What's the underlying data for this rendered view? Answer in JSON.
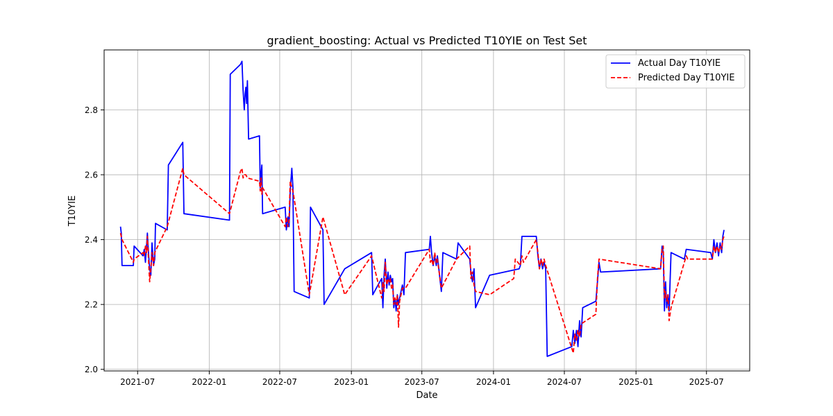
{
  "chart_data": {
    "type": "line",
    "title": "gradient_boosting: Actual vs Predicted T10YIE on Test Set",
    "xlabel": "Date",
    "ylabel": "T10YIE",
    "xlim": [
      "2021-04-06",
      "2025-10-20"
    ],
    "ylim": [
      1.995,
      2.985
    ],
    "grid": true,
    "legend_position": "top-right",
    "x_ticks": [
      "2021-07",
      "2022-01",
      "2022-07",
      "2023-01",
      "2023-07",
      "2024-01",
      "2024-07",
      "2025-01",
      "2025-07"
    ],
    "y_ticks": [
      "2.0",
      "2.2",
      "2.4",
      "2.6",
      "2.8"
    ],
    "series": [
      {
        "name": "Actual Day T10YIE",
        "color": "#0000ff",
        "style": "solid",
        "points": [
          [
            "2021-05-18",
            2.44
          ],
          [
            "2021-05-20",
            2.42
          ],
          [
            "2021-05-22",
            2.32
          ],
          [
            "2021-06-20",
            2.32
          ],
          [
            "2021-06-22",
            2.38
          ],
          [
            "2021-07-15",
            2.35
          ],
          [
            "2021-07-18",
            2.37
          ],
          [
            "2021-07-21",
            2.33
          ],
          [
            "2021-07-24",
            2.38
          ],
          [
            "2021-07-26",
            2.42
          ],
          [
            "2021-07-29",
            2.36
          ],
          [
            "2021-08-01",
            2.31
          ],
          [
            "2021-08-04",
            2.29
          ],
          [
            "2021-08-07",
            2.39
          ],
          [
            "2021-08-11",
            2.32
          ],
          [
            "2021-08-14",
            2.34
          ],
          [
            "2021-08-16",
            2.45
          ],
          [
            "2021-09-15",
            2.43
          ],
          [
            "2021-09-18",
            2.63
          ],
          [
            "2021-10-25",
            2.7
          ],
          [
            "2021-10-28",
            2.48
          ],
          [
            "2022-02-22",
            2.46
          ],
          [
            "2022-02-24",
            2.91
          ],
          [
            "2022-03-22",
            2.94
          ],
          [
            "2022-03-26",
            2.95
          ],
          [
            "2022-03-29",
            2.86
          ],
          [
            "2022-04-01",
            2.8
          ],
          [
            "2022-04-03",
            2.85
          ],
          [
            "2022-04-05",
            2.87
          ],
          [
            "2022-04-07",
            2.82
          ],
          [
            "2022-04-09",
            2.89
          ],
          [
            "2022-04-12",
            2.71
          ],
          [
            "2022-05-10",
            2.72
          ],
          [
            "2022-05-12",
            2.56
          ],
          [
            "2022-05-14",
            2.6
          ],
          [
            "2022-05-16",
            2.63
          ],
          [
            "2022-05-18",
            2.48
          ],
          [
            "2022-07-15",
            2.5
          ],
          [
            "2022-07-18",
            2.43
          ],
          [
            "2022-07-22",
            2.47
          ],
          [
            "2022-07-25",
            2.44
          ],
          [
            "2022-07-28",
            2.55
          ],
          [
            "2022-08-01",
            2.62
          ],
          [
            "2022-08-04",
            2.56
          ],
          [
            "2022-08-07",
            2.24
          ],
          [
            "2022-09-15",
            2.22
          ],
          [
            "2022-09-18",
            2.5
          ],
          [
            "2022-10-20",
            2.43
          ],
          [
            "2022-10-23",
            2.2
          ],
          [
            "2022-12-15",
            2.31
          ],
          [
            "2023-02-22",
            2.36
          ],
          [
            "2023-02-25",
            2.23
          ],
          [
            "2023-03-15",
            2.27
          ],
          [
            "2023-03-20",
            2.28
          ],
          [
            "2023-03-23",
            2.19
          ],
          [
            "2023-03-26",
            2.29
          ],
          [
            "2023-03-29",
            2.34
          ],
          [
            "2023-04-02",
            2.25
          ],
          [
            "2023-04-05",
            2.3
          ],
          [
            "2023-04-08",
            2.26
          ],
          [
            "2023-04-11",
            2.29
          ],
          [
            "2023-04-14",
            2.27
          ],
          [
            "2023-04-17",
            2.28
          ],
          [
            "2023-04-20",
            2.19
          ],
          [
            "2023-04-23",
            2.22
          ],
          [
            "2023-04-26",
            2.18
          ],
          [
            "2023-04-29",
            2.23
          ],
          [
            "2023-05-02",
            2.2
          ],
          [
            "2023-05-05",
            2.22
          ],
          [
            "2023-05-12",
            2.26
          ],
          [
            "2023-05-16",
            2.23
          ],
          [
            "2023-05-20",
            2.36
          ],
          [
            "2023-07-20",
            2.37
          ],
          [
            "2023-07-23",
            2.41
          ],
          [
            "2023-07-26",
            2.36
          ],
          [
            "2023-07-30",
            2.32
          ],
          [
            "2023-08-03",
            2.35
          ],
          [
            "2023-08-07",
            2.32
          ],
          [
            "2023-08-10",
            2.35
          ],
          [
            "2023-08-20",
            2.24
          ],
          [
            "2023-08-24",
            2.36
          ],
          [
            "2023-09-28",
            2.34
          ],
          [
            "2023-10-02",
            2.39
          ],
          [
            "2023-11-01",
            2.34
          ],
          [
            "2023-11-04",
            2.3
          ],
          [
            "2023-11-08",
            2.27
          ],
          [
            "2023-11-12",
            2.31
          ],
          [
            "2023-11-16",
            2.19
          ],
          [
            "2023-12-22",
            2.29
          ],
          [
            "2024-03-07",
            2.31
          ],
          [
            "2024-03-10",
            2.32
          ],
          [
            "2024-03-14",
            2.41
          ],
          [
            "2024-04-20",
            2.41
          ],
          [
            "2024-04-24",
            2.35
          ],
          [
            "2024-04-28",
            2.31
          ],
          [
            "2024-05-02",
            2.34
          ],
          [
            "2024-05-06",
            2.31
          ],
          [
            "2024-05-10",
            2.33
          ],
          [
            "2024-05-14",
            2.31
          ],
          [
            "2024-05-18",
            2.04
          ],
          [
            "2024-07-20",
            2.07
          ],
          [
            "2024-07-24",
            2.12
          ],
          [
            "2024-07-28",
            2.08
          ],
          [
            "2024-08-01",
            2.12
          ],
          [
            "2024-08-05",
            2.07
          ],
          [
            "2024-08-09",
            2.15
          ],
          [
            "2024-08-13",
            2.1
          ],
          [
            "2024-08-17",
            2.19
          ],
          [
            "2024-09-20",
            2.21
          ],
          [
            "2024-09-24",
            2.27
          ],
          [
            "2024-09-28",
            2.33
          ],
          [
            "2024-10-02",
            2.3
          ],
          [
            "2025-03-05",
            2.31
          ],
          [
            "2025-03-09",
            2.38
          ],
          [
            "2025-03-12",
            2.36
          ],
          [
            "2025-03-15",
            2.18
          ],
          [
            "2025-03-18",
            2.27
          ],
          [
            "2025-03-21",
            2.19
          ],
          [
            "2025-03-24",
            2.23
          ],
          [
            "2025-03-27",
            2.18
          ],
          [
            "2025-04-01",
            2.36
          ],
          [
            "2025-05-05",
            2.34
          ],
          [
            "2025-05-10",
            2.37
          ],
          [
            "2025-07-12",
            2.36
          ],
          [
            "2025-07-16",
            2.34
          ],
          [
            "2025-07-20",
            2.4
          ],
          [
            "2025-07-24",
            2.36
          ],
          [
            "2025-07-28",
            2.39
          ],
          [
            "2025-08-01",
            2.35
          ],
          [
            "2025-08-05",
            2.39
          ],
          [
            "2025-08-09",
            2.36
          ],
          [
            "2025-08-12",
            2.41
          ],
          [
            "2025-08-15",
            2.43
          ]
        ]
      },
      {
        "name": "Predicted Day T10YIE",
        "color": "#ff0000",
        "style": "dashed",
        "points": [
          [
            "2021-05-18",
            2.42
          ],
          [
            "2021-05-22",
            2.4
          ],
          [
            "2021-06-20",
            2.33
          ],
          [
            "2021-06-22",
            2.34
          ],
          [
            "2021-07-15",
            2.36
          ],
          [
            "2021-07-18",
            2.35
          ],
          [
            "2021-07-21",
            2.38
          ],
          [
            "2021-07-24",
            2.36
          ],
          [
            "2021-07-26",
            2.41
          ],
          [
            "2021-07-29",
            2.34
          ],
          [
            "2021-08-01",
            2.27
          ],
          [
            "2021-08-04",
            2.31
          ],
          [
            "2021-08-07",
            2.36
          ],
          [
            "2021-08-11",
            2.32
          ],
          [
            "2021-08-14",
            2.36
          ],
          [
            "2021-09-15",
            2.44
          ],
          [
            "2021-10-25",
            2.62
          ],
          [
            "2021-10-28",
            2.6
          ],
          [
            "2022-02-22",
            2.48
          ],
          [
            "2022-03-22",
            2.61
          ],
          [
            "2022-03-26",
            2.62
          ],
          [
            "2022-03-29",
            2.59
          ],
          [
            "2022-04-01",
            2.6
          ],
          [
            "2022-04-05",
            2.6
          ],
          [
            "2022-04-09",
            2.59
          ],
          [
            "2022-05-10",
            2.58
          ],
          [
            "2022-05-12",
            2.55
          ],
          [
            "2022-05-14",
            2.59
          ],
          [
            "2022-05-16",
            2.54
          ],
          [
            "2022-05-18",
            2.56
          ],
          [
            "2022-07-15",
            2.44
          ],
          [
            "2022-07-18",
            2.47
          ],
          [
            "2022-07-22",
            2.44
          ],
          [
            "2022-07-25",
            2.46
          ],
          [
            "2022-07-28",
            2.58
          ],
          [
            "2022-08-01",
            2.56
          ],
          [
            "2022-08-04",
            2.55
          ],
          [
            "2022-09-15",
            2.23
          ],
          [
            "2022-10-20",
            2.47
          ],
          [
            "2022-12-15",
            2.23
          ],
          [
            "2023-02-22",
            2.35
          ],
          [
            "2023-03-20",
            2.22
          ],
          [
            "2023-03-23",
            2.27
          ],
          [
            "2023-03-26",
            2.24
          ],
          [
            "2023-03-29",
            2.33
          ],
          [
            "2023-04-02",
            2.26
          ],
          [
            "2023-04-05",
            2.28
          ],
          [
            "2023-04-08",
            2.27
          ],
          [
            "2023-04-11",
            2.28
          ],
          [
            "2023-04-14",
            2.25
          ],
          [
            "2023-04-17",
            2.26
          ],
          [
            "2023-04-20",
            2.2
          ],
          [
            "2023-04-23",
            2.22
          ],
          [
            "2023-04-26",
            2.2
          ],
          [
            "2023-04-29",
            2.23
          ],
          [
            "2023-05-02",
            2.13
          ],
          [
            "2023-05-05",
            2.21
          ],
          [
            "2023-05-12",
            2.25
          ],
          [
            "2023-05-20",
            2.25
          ],
          [
            "2023-07-20",
            2.37
          ],
          [
            "2023-07-23",
            2.33
          ],
          [
            "2023-07-26",
            2.34
          ],
          [
            "2023-07-30",
            2.32
          ],
          [
            "2023-08-03",
            2.36
          ],
          [
            "2023-08-07",
            2.33
          ],
          [
            "2023-08-10",
            2.34
          ],
          [
            "2023-08-20",
            2.25
          ],
          [
            "2023-09-28",
            2.34
          ],
          [
            "2023-11-01",
            2.38
          ],
          [
            "2023-11-04",
            2.28
          ],
          [
            "2023-11-08",
            2.3
          ],
          [
            "2023-11-12",
            2.26
          ],
          [
            "2023-11-16",
            2.24
          ],
          [
            "2023-12-22",
            2.23
          ],
          [
            "2024-02-22",
            2.28
          ],
          [
            "2024-02-26",
            2.34
          ],
          [
            "2024-03-10",
            2.32
          ],
          [
            "2024-03-14",
            2.35
          ],
          [
            "2024-03-18",
            2.33
          ],
          [
            "2024-04-20",
            2.4
          ],
          [
            "2024-04-24",
            2.36
          ],
          [
            "2024-04-28",
            2.31
          ],
          [
            "2024-05-02",
            2.34
          ],
          [
            "2024-05-06",
            2.32
          ],
          [
            "2024-05-10",
            2.34
          ],
          [
            "2024-05-14",
            2.32
          ],
          [
            "2024-07-24",
            2.05
          ],
          [
            "2024-07-28",
            2.11
          ],
          [
            "2024-08-01",
            2.09
          ],
          [
            "2024-08-05",
            2.12
          ],
          [
            "2024-08-09",
            2.1
          ],
          [
            "2024-08-13",
            2.14
          ],
          [
            "2024-09-20",
            2.17
          ],
          [
            "2024-09-24",
            2.28
          ],
          [
            "2024-09-28",
            2.34
          ],
          [
            "2025-03-05",
            2.31
          ],
          [
            "2025-03-09",
            2.37
          ],
          [
            "2025-03-12",
            2.38
          ],
          [
            "2025-03-15",
            2.22
          ],
          [
            "2025-03-18",
            2.24
          ],
          [
            "2025-03-21",
            2.21
          ],
          [
            "2025-03-24",
            2.23
          ],
          [
            "2025-03-27",
            2.15
          ],
          [
            "2025-04-01",
            2.19
          ],
          [
            "2025-05-10",
            2.35
          ],
          [
            "2025-05-14",
            2.34
          ],
          [
            "2025-07-12",
            2.34
          ],
          [
            "2025-07-16",
            2.34
          ],
          [
            "2025-07-20",
            2.38
          ],
          [
            "2025-07-24",
            2.36
          ],
          [
            "2025-07-28",
            2.38
          ],
          [
            "2025-08-01",
            2.36
          ],
          [
            "2025-08-05",
            2.38
          ],
          [
            "2025-08-09",
            2.37
          ],
          [
            "2025-08-12",
            2.4
          ],
          [
            "2025-08-15",
            2.41
          ]
        ]
      }
    ]
  }
}
